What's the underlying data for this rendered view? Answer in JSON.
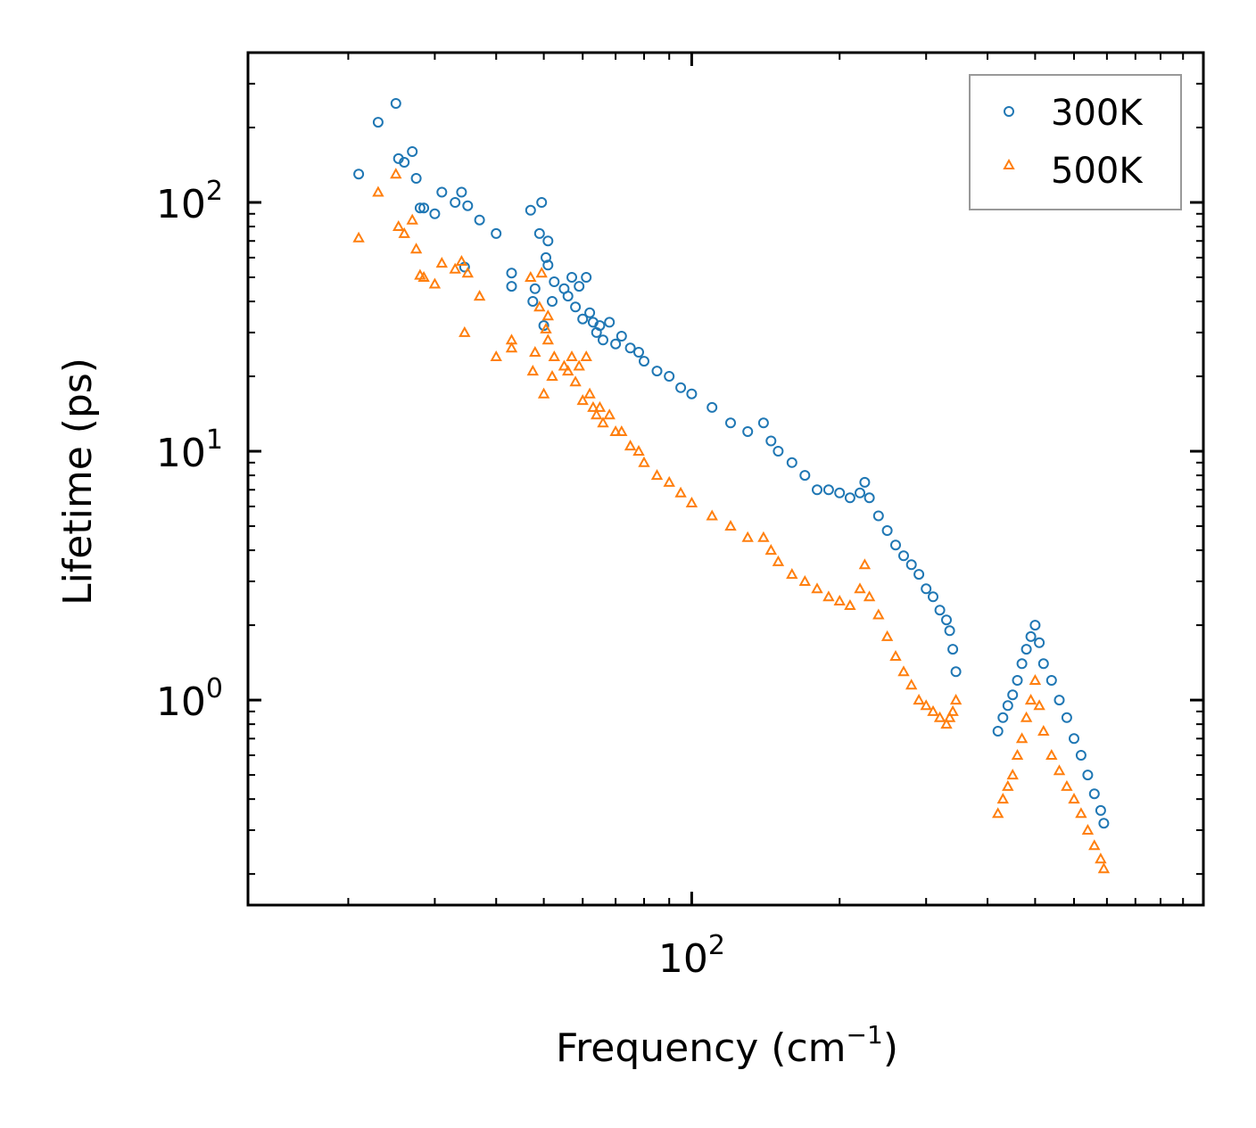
{
  "chart_data": {
    "type": "scatter",
    "title": "",
    "xlabel": "Frequency (cm",
    "xlabel_sup": "−1",
    "xlabel_close": ")",
    "ylabel": "Lifetime (ps)",
    "xscale": "log",
    "yscale": "log",
    "xlim": [
      12.5,
      1100
    ],
    "ylim": [
      0.15,
      400
    ],
    "x_major_ticks": [
      {
        "value": 100,
        "base": "10",
        "exp": "2"
      }
    ],
    "y_major_ticks": [
      {
        "value": 1,
        "base": "10",
        "exp": "0"
      },
      {
        "value": 10,
        "base": "10",
        "exp": "1"
      },
      {
        "value": 100,
        "base": "10",
        "exp": "2"
      }
    ],
    "legend_position": "top-right",
    "series": [
      {
        "name": "300K",
        "marker": "circle",
        "color": "#1f77b4",
        "points": [
          [
            21,
            130
          ],
          [
            23,
            210
          ],
          [
            25,
            250
          ],
          [
            25.3,
            150
          ],
          [
            26,
            145
          ],
          [
            27,
            160
          ],
          [
            27.5,
            125
          ],
          [
            28,
            95
          ],
          [
            28.5,
            95
          ],
          [
            30,
            90
          ],
          [
            31,
            110
          ],
          [
            33,
            100
          ],
          [
            34,
            110
          ],
          [
            34.5,
            55
          ],
          [
            35,
            97
          ],
          [
            37,
            85
          ],
          [
            40,
            75
          ],
          [
            43,
            52
          ],
          [
            43,
            46
          ],
          [
            47,
            93
          ],
          [
            47.5,
            40
          ],
          [
            48,
            45
          ],
          [
            49,
            75
          ],
          [
            49.5,
            100
          ],
          [
            50,
            32
          ],
          [
            50.5,
            60
          ],
          [
            51,
            56
          ],
          [
            51,
            70
          ],
          [
            52,
            40
          ],
          [
            52.5,
            48
          ],
          [
            55,
            45
          ],
          [
            56,
            42
          ],
          [
            57,
            50
          ],
          [
            58,
            38
          ],
          [
            59,
            46
          ],
          [
            60,
            34
          ],
          [
            61,
            50
          ],
          [
            62,
            36
          ],
          [
            63,
            33
          ],
          [
            64,
            30
          ],
          [
            65,
            32
          ],
          [
            66,
            28
          ],
          [
            68,
            33
          ],
          [
            70,
            27
          ],
          [
            72,
            29
          ],
          [
            75,
            26
          ],
          [
            78,
            25
          ],
          [
            80,
            23
          ],
          [
            85,
            21
          ],
          [
            90,
            20
          ],
          [
            95,
            18
          ],
          [
            100,
            17
          ],
          [
            110,
            15
          ],
          [
            120,
            13
          ],
          [
            130,
            12
          ],
          [
            140,
            13
          ],
          [
            145,
            11
          ],
          [
            150,
            10
          ],
          [
            160,
            9
          ],
          [
            170,
            8
          ],
          [
            180,
            7
          ],
          [
            190,
            7
          ],
          [
            200,
            6.8
          ],
          [
            210,
            6.5
          ],
          [
            220,
            6.8
          ],
          [
            225,
            7.5
          ],
          [
            230,
            6.5
          ],
          [
            240,
            5.5
          ],
          [
            250,
            4.8
          ],
          [
            260,
            4.2
          ],
          [
            270,
            3.8
          ],
          [
            280,
            3.5
          ],
          [
            290,
            3.2
          ],
          [
            300,
            2.8
          ],
          [
            310,
            2.6
          ],
          [
            320,
            2.3
          ],
          [
            330,
            2.1
          ],
          [
            335,
            1.9
          ],
          [
            340,
            1.6
          ],
          [
            345,
            1.3
          ],
          [
            420,
            0.75
          ],
          [
            430,
            0.85
          ],
          [
            440,
            0.95
          ],
          [
            450,
            1.05
          ],
          [
            460,
            1.2
          ],
          [
            470,
            1.4
          ],
          [
            480,
            1.6
          ],
          [
            490,
            1.8
          ],
          [
            500,
            2.0
          ],
          [
            510,
            1.7
          ],
          [
            520,
            1.4
          ],
          [
            540,
            1.2
          ],
          [
            560,
            1.0
          ],
          [
            580,
            0.85
          ],
          [
            600,
            0.7
          ],
          [
            620,
            0.6
          ],
          [
            640,
            0.5
          ],
          [
            660,
            0.42
          ],
          [
            680,
            0.36
          ],
          [
            690,
            0.32
          ]
        ]
      },
      {
        "name": "500K",
        "marker": "triangle",
        "color": "#ff7f0e",
        "points": [
          [
            21,
            72
          ],
          [
            23,
            110
          ],
          [
            25,
            130
          ],
          [
            25.3,
            80
          ],
          [
            26,
            75
          ],
          [
            27,
            85
          ],
          [
            27.5,
            65
          ],
          [
            28,
            51
          ],
          [
            28.5,
            50
          ],
          [
            30,
            47
          ],
          [
            31,
            57
          ],
          [
            33,
            54
          ],
          [
            34,
            58
          ],
          [
            34.5,
            30
          ],
          [
            35,
            52
          ],
          [
            37,
            42
          ],
          [
            40,
            24
          ],
          [
            43,
            28
          ],
          [
            43,
            26
          ],
          [
            47,
            50
          ],
          [
            47.5,
            21
          ],
          [
            48,
            25
          ],
          [
            49,
            38
          ],
          [
            49.5,
            52
          ],
          [
            50,
            17
          ],
          [
            50.5,
            31
          ],
          [
            51,
            28
          ],
          [
            51,
            35
          ],
          [
            52,
            20
          ],
          [
            52.5,
            24
          ],
          [
            55,
            22
          ],
          [
            56,
            21
          ],
          [
            57,
            24
          ],
          [
            58,
            19
          ],
          [
            59,
            22
          ],
          [
            60,
            16
          ],
          [
            61,
            24
          ],
          [
            62,
            17
          ],
          [
            63,
            15
          ],
          [
            64,
            14
          ],
          [
            65,
            15
          ],
          [
            66,
            13
          ],
          [
            68,
            14
          ],
          [
            70,
            12
          ],
          [
            72,
            12
          ],
          [
            75,
            10.5
          ],
          [
            78,
            10
          ],
          [
            80,
            9
          ],
          [
            85,
            8
          ],
          [
            90,
            7.5
          ],
          [
            95,
            6.8
          ],
          [
            100,
            6.2
          ],
          [
            110,
            5.5
          ],
          [
            120,
            5
          ],
          [
            130,
            4.5
          ],
          [
            140,
            4.5
          ],
          [
            145,
            4
          ],
          [
            150,
            3.6
          ],
          [
            160,
            3.2
          ],
          [
            170,
            3
          ],
          [
            180,
            2.8
          ],
          [
            190,
            2.6
          ],
          [
            200,
            2.5
          ],
          [
            210,
            2.4
          ],
          [
            220,
            2.8
          ],
          [
            225,
            3.5
          ],
          [
            230,
            2.6
          ],
          [
            240,
            2.2
          ],
          [
            250,
            1.8
          ],
          [
            260,
            1.5
          ],
          [
            270,
            1.3
          ],
          [
            280,
            1.15
          ],
          [
            290,
            1.0
          ],
          [
            300,
            0.95
          ],
          [
            310,
            0.9
          ],
          [
            320,
            0.85
          ],
          [
            330,
            0.8
          ],
          [
            335,
            0.85
          ],
          [
            340,
            0.9
          ],
          [
            345,
            1.0
          ],
          [
            420,
            0.35
          ],
          [
            430,
            0.4
          ],
          [
            440,
            0.45
          ],
          [
            450,
            0.5
          ],
          [
            460,
            0.6
          ],
          [
            470,
            0.7
          ],
          [
            480,
            0.85
          ],
          [
            490,
            1.0
          ],
          [
            500,
            1.2
          ],
          [
            510,
            0.95
          ],
          [
            520,
            0.75
          ],
          [
            540,
            0.6
          ],
          [
            560,
            0.52
          ],
          [
            580,
            0.45
          ],
          [
            600,
            0.4
          ],
          [
            620,
            0.35
          ],
          [
            640,
            0.3
          ],
          [
            660,
            0.26
          ],
          [
            680,
            0.23
          ],
          [
            690,
            0.21
          ]
        ]
      }
    ]
  }
}
